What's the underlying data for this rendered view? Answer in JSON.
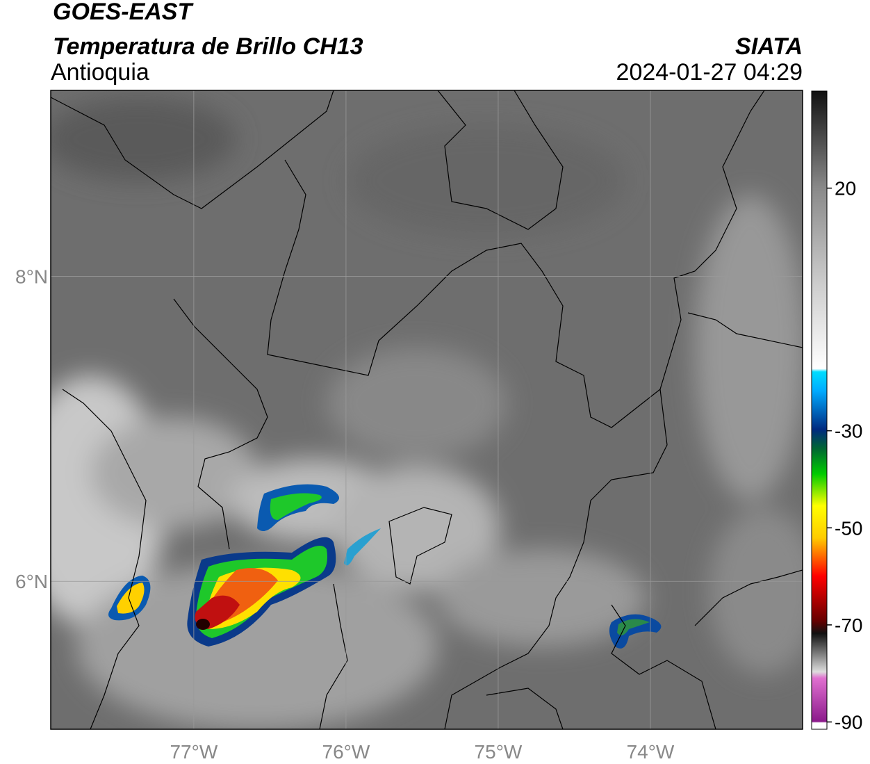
{
  "header": {
    "satellite": "GOES-EAST",
    "product": "Temperatura de Brillo CH13",
    "region": "Antioquia",
    "agency": "SIATA",
    "datetime": "2024-01-27 04:29"
  },
  "map": {
    "xlim": [
      -77.94,
      -73
    ],
    "ylim": [
      5.03,
      9.22
    ],
    "xticks": [
      {
        "value": -77,
        "label": "77°W"
      },
      {
        "value": -76,
        "label": "76°W"
      },
      {
        "value": -75,
        "label": "75°W"
      },
      {
        "value": -74,
        "label": "74°W"
      }
    ],
    "yticks": [
      {
        "value": 6,
        "label": "6°N"
      },
      {
        "value": 8,
        "label": "8°N"
      }
    ]
  },
  "colorbar": {
    "lim": [
      -91.5,
      40
    ],
    "ticks": [
      20,
      -30,
      -50,
      -70,
      -90
    ]
  }
}
